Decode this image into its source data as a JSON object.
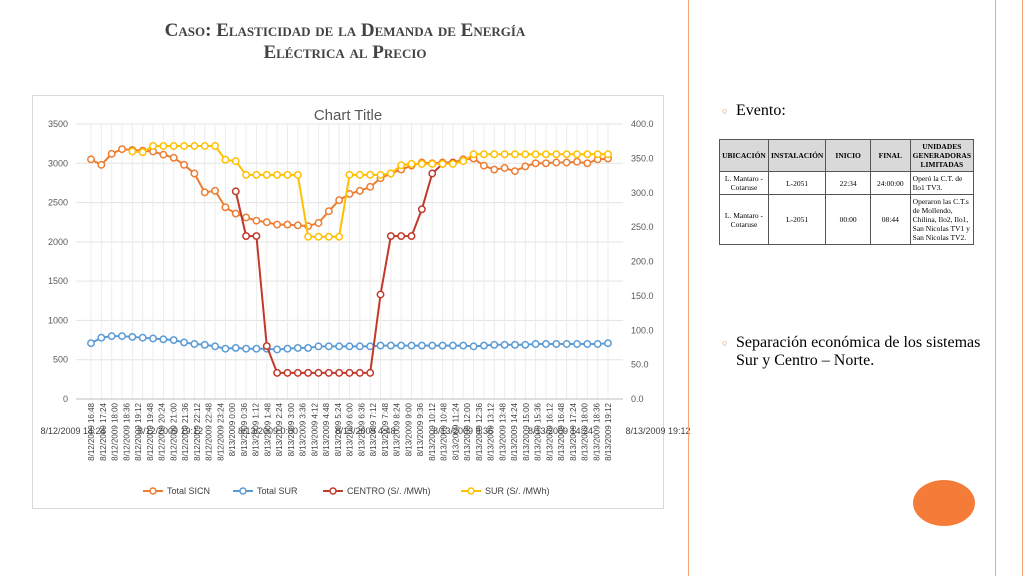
{
  "slide": {
    "title_line1": "Caso: Elasticidad de la Demanda de Energía",
    "title_line2": "Eléctrica al Precio"
  },
  "bullets": {
    "event_label": "Evento:",
    "separation_text": "Separación económica de los sistemas Sur y Centro – Norte."
  },
  "events_table": {
    "headers": [
      "UBICACIÓN",
      "INSTALACIÓN",
      "INICIO",
      "FINAL",
      "UNIDADES GENERADORAS LIMITADAS"
    ],
    "rows": [
      [
        "L. Mantaro - Cotaruse",
        "L-2051",
        "22:34",
        "24:00:00",
        "Operó la C.T. de Ilo1 TV3."
      ],
      [
        "L. Mantaro - Cotaruse",
        "L-2051",
        "00:00",
        "08:44",
        "Operaron las C.T.s de Mollendo, Chilina, Ilo2, Ilo1, San Nicolas TV1 y San Nicolas TV2."
      ]
    ]
  },
  "colors": {
    "sicn": "#ed7d31",
    "sur_total": "#5b9bd5",
    "centro": "#c0392b",
    "sur_price": "#ffc000",
    "accent": "#f57c38"
  },
  "chart_data": {
    "type": "line",
    "title": "Chart Title",
    "grid": true,
    "legend_position": "bottom",
    "y_left": {
      "min": 0,
      "max": 3500,
      "ticks": [
        "0",
        "500",
        "1000",
        "1500",
        "2000",
        "2500",
        "3000",
        "3500"
      ]
    },
    "y_right": {
      "min": 0,
      "max": 400,
      "ticks": [
        "0.0",
        "50.0",
        "100.0",
        "150.0",
        "200.0",
        "250.0",
        "300.0",
        "350.0",
        "400.0"
      ]
    },
    "x_labels": [
      "8/12/2009 16:48",
      "8/12/2009 17:24",
      "8/12/2009 18:00",
      "8/12/2009 18:36",
      "8/12/2009 19:12",
      "8/12/2009 19:48",
      "8/12/2009 20:24",
      "8/12/2009 21:00",
      "8/12/2009 21:36",
      "8/12/2009 22:12",
      "8/12/2009 22:48",
      "8/12/2009 23:24",
      "8/13/2009 0:00",
      "8/13/2009 0:36",
      "8/13/2009 1:12",
      "8/13/2009 1:48",
      "8/13/2009 2:24",
      "8/13/2009 3:00",
      "8/13/2009 3:36",
      "8/13/2009 4:12",
      "8/13/2009 4:48",
      "8/13/2009 5:24",
      "8/13/2009 6:00",
      "8/13/2009 6:36",
      "8/13/2009 7:12",
      "8/13/2009 7:48",
      "8/13/2009 8:24",
      "8/13/2009 9:00",
      "8/13/2009 9:36",
      "8/13/2009 10:12",
      "8/13/2009 10:48",
      "8/13/2009 11:24",
      "8/13/2009 12:00",
      "8/13/2009 12:36",
      "8/13/2009 13:12",
      "8/13/2009 13:48",
      "8/13/2009 14:24",
      "8/13/2009 15:00",
      "8/13/2009 15:36",
      "8/13/2009 16:12",
      "8/13/2009 16:48",
      "8/13/2009 17:24",
      "8/13/2009 18:00",
      "8/13/2009 18:36",
      "8/13/2009 19:12"
    ],
    "secondary_x_labels": [
      "8/12/2009 14:24",
      "8/12/2009 19:12",
      "8/13/2009 0:00",
      "8/13/2009 4:48",
      "8/13/2009 9:36",
      "8/13/2009 14:24",
      "8/13/2009 19:12"
    ],
    "n_points": 51,
    "series": [
      {
        "name": "Total SICN",
        "axis": "left",
        "values": [
          3050,
          2980,
          3120,
          3180,
          3170,
          3160,
          3150,
          3110,
          3070,
          2980,
          2870,
          2630,
          2650,
          2440,
          2360,
          2310,
          2270,
          2250,
          2220,
          2220,
          2210,
          2200,
          2240,
          2390,
          2530,
          2610,
          2650,
          2700,
          2810,
          2870,
          2920,
          2970,
          3010,
          3000,
          3010,
          3010,
          3050,
          3060,
          2970,
          2920,
          2940,
          2900,
          2960,
          3000,
          3000,
          3010,
          3010,
          3020,
          3000,
          3050,
          3060
        ]
      },
      {
        "name": "Total SUR",
        "axis": "left",
        "values": [
          710,
          780,
          800,
          800,
          790,
          780,
          770,
          760,
          750,
          720,
          700,
          690,
          670,
          640,
          650,
          640,
          640,
          640,
          630,
          640,
          650,
          650,
          670,
          670,
          670,
          670,
          670,
          670,
          680,
          680,
          680,
          680,
          680,
          680,
          680,
          680,
          680,
          670,
          680,
          690,
          690,
          690,
          690,
          700,
          700,
          700,
          700,
          700,
          700,
          700,
          710
        ]
      },
      {
        "name": "CENTRO   (S/. /MWh)",
        "axis": "right",
        "values": [
          null,
          null,
          null,
          null,
          null,
          null,
          null,
          null,
          null,
          null,
          null,
          null,
          null,
          null,
          302,
          237,
          237,
          77,
          38,
          38,
          38,
          38,
          38,
          38,
          38,
          38,
          38,
          38,
          152,
          237,
          237,
          237,
          276,
          328,
          342,
          343,
          null,
          null,
          null,
          null,
          null,
          null,
          null,
          null,
          null,
          null,
          null,
          null,
          null,
          null,
          null
        ]
      },
      {
        "name": "SUR   (S/. /MWh)",
        "axis": "right",
        "values": [
          null,
          null,
          null,
          null,
          360,
          359,
          368,
          368,
          368,
          368,
          368,
          368,
          368,
          348,
          346,
          326,
          326,
          326,
          326,
          326,
          326,
          236,
          236,
          236,
          236,
          326,
          326,
          326,
          326,
          328,
          340,
          342,
          342,
          342,
          342,
          342,
          346,
          356,
          356,
          356,
          356,
          356,
          356,
          356,
          356,
          356,
          356,
          356,
          356,
          356,
          356
        ]
      }
    ]
  }
}
